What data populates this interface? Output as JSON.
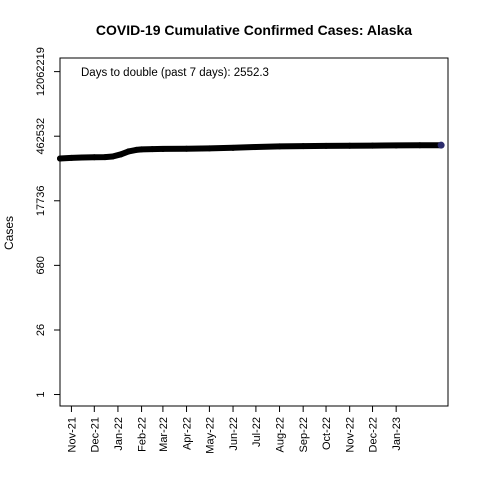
{
  "chart_data": {
    "type": "line",
    "title": "COVID-19 Cumulative Confirmed Cases: Alaska",
    "xlabel": "",
    "ylabel": "Cases",
    "y_scale": "log",
    "ylim": [
      0.56,
      24000000
    ],
    "xlim": [
      "2021-10-17",
      "2023-03-10"
    ],
    "y_ticks": [
      {
        "value": 1,
        "label": "1"
      },
      {
        "value": 26,
        "label": "26"
      },
      {
        "value": 680,
        "label": "680"
      },
      {
        "value": 17736,
        "label": "17736"
      },
      {
        "value": 462532,
        "label": "462532"
      },
      {
        "value": 12062219,
        "label": "12062219"
      }
    ],
    "x_ticks": [
      {
        "date": "2021-11-01",
        "label": "Nov-21"
      },
      {
        "date": "2021-12-01",
        "label": "Dec-21"
      },
      {
        "date": "2022-01-01",
        "label": "Jan-22"
      },
      {
        "date": "2022-02-01",
        "label": "Feb-22"
      },
      {
        "date": "2022-03-01",
        "label": "Mar-22"
      },
      {
        "date": "2022-04-01",
        "label": "Apr-22"
      },
      {
        "date": "2022-05-01",
        "label": "May-22"
      },
      {
        "date": "2022-06-01",
        "label": "Jun-22"
      },
      {
        "date": "2022-07-01",
        "label": "Jul-22"
      },
      {
        "date": "2022-08-01",
        "label": "Aug-22"
      },
      {
        "date": "2022-09-01",
        "label": "Sep-22"
      },
      {
        "date": "2022-10-01",
        "label": "Oct-22"
      },
      {
        "date": "2022-11-01",
        "label": "Nov-22"
      },
      {
        "date": "2022-12-01",
        "label": "Dec-22"
      },
      {
        "date": "2023-01-01",
        "label": "Jan-23"
      }
    ],
    "annotation": "Days to double (past 7 days): 2552.3",
    "grid": false,
    "line_color": "#000000",
    "end_marker_color": "#2b2b6b",
    "series": [
      {
        "x": [
          "2021-10-17",
          "2021-11-01",
          "2021-11-15",
          "2021-12-01",
          "2021-12-15",
          "2021-12-25",
          "2022-01-05",
          "2022-01-15",
          "2022-01-25",
          "2022-02-01",
          "2022-02-15",
          "2022-03-01",
          "2022-04-01",
          "2022-05-01",
          "2022-06-01",
          "2022-07-01",
          "2022-08-01",
          "2022-09-01",
          "2022-10-01",
          "2022-11-01",
          "2022-12-01",
          "2023-01-01",
          "2023-02-01",
          "2023-03-01"
        ],
        "y": [
          150000,
          155000,
          158000,
          160000,
          161000,
          166000,
          185000,
          215000,
          232000,
          238000,
          241000,
          243000,
          246000,
          250000,
          257000,
          268000,
          277000,
          281000,
          284000,
          286000,
          288000,
          290000,
          292000,
          294000
        ]
      }
    ]
  }
}
